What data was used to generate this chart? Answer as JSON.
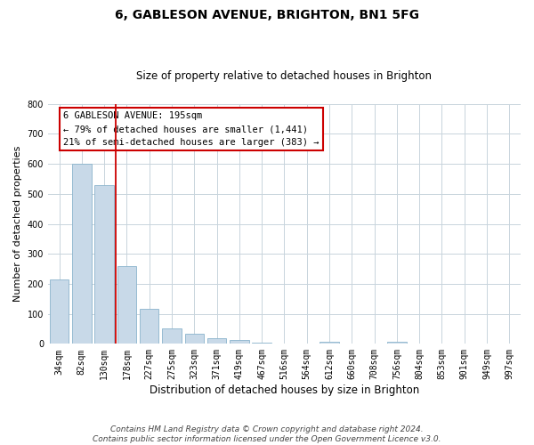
{
  "title": "6, GABLESON AVENUE, BRIGHTON, BN1 5FG",
  "subtitle": "Size of property relative to detached houses in Brighton",
  "xlabel": "Distribution of detached houses by size in Brighton",
  "ylabel": "Number of detached properties",
  "footnote1": "Contains HM Land Registry data © Crown copyright and database right 2024.",
  "footnote2": "Contains public sector information licensed under the Open Government Licence v3.0.",
  "bar_labels": [
    "34sqm",
    "82sqm",
    "130sqm",
    "178sqm",
    "227sqm",
    "275sqm",
    "323sqm",
    "371sqm",
    "419sqm",
    "467sqm",
    "516sqm",
    "564sqm",
    "612sqm",
    "660sqm",
    "708sqm",
    "756sqm",
    "804sqm",
    "853sqm",
    "901sqm",
    "949sqm",
    "997sqm"
  ],
  "bar_values": [
    215,
    600,
    530,
    258,
    117,
    50,
    33,
    20,
    12,
    5,
    0,
    0,
    8,
    0,
    0,
    7,
    0,
    0,
    0,
    0,
    0
  ],
  "bar_color": "#c8d9e8",
  "bar_edge_color": "#8ab4cc",
  "property_line_color": "#cc0000",
  "property_line_x": 2.5,
  "ylim": [
    0,
    800
  ],
  "yticks": [
    0,
    100,
    200,
    300,
    400,
    500,
    600,
    700,
    800
  ],
  "annotation_title": "6 GABLESON AVENUE: 195sqm",
  "annotation_line1": "← 79% of detached houses are smaller (1,441)",
  "annotation_line2": "21% of semi-detached houses are larger (383) →",
  "annotation_box_color": "#cc0000",
  "grid_color": "#c8d4dc",
  "background_color": "#ffffff",
  "title_fontsize": 10,
  "subtitle_fontsize": 8.5,
  "xlabel_fontsize": 8.5,
  "ylabel_fontsize": 8,
  "tick_fontsize": 7,
  "footnote_fontsize": 6.5,
  "annotation_fontsize": 7.5
}
